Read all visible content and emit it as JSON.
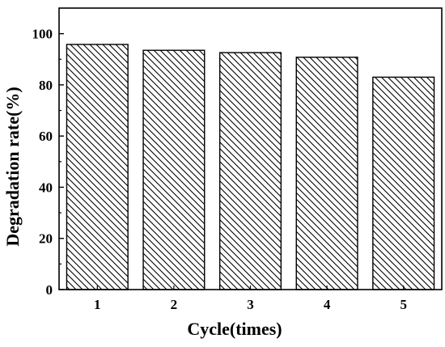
{
  "chart_data": {
    "type": "bar",
    "categories": [
      "1",
      "2",
      "3",
      "4",
      "5"
    ],
    "values": [
      95.8,
      93.5,
      92.6,
      90.8,
      83.0
    ],
    "xlabel": "Cycle(times)",
    "ylabel": "Degradation rate(%)",
    "ylim": [
      0,
      110
    ],
    "yticks": [
      0,
      20,
      40,
      60,
      80,
      100
    ],
    "grid": false,
    "legend": "none",
    "bar_fill": "diagonal-hatch",
    "colors": {
      "bar_edge": "#000000",
      "hatch": "#000000",
      "background": "#ffffff"
    }
  }
}
